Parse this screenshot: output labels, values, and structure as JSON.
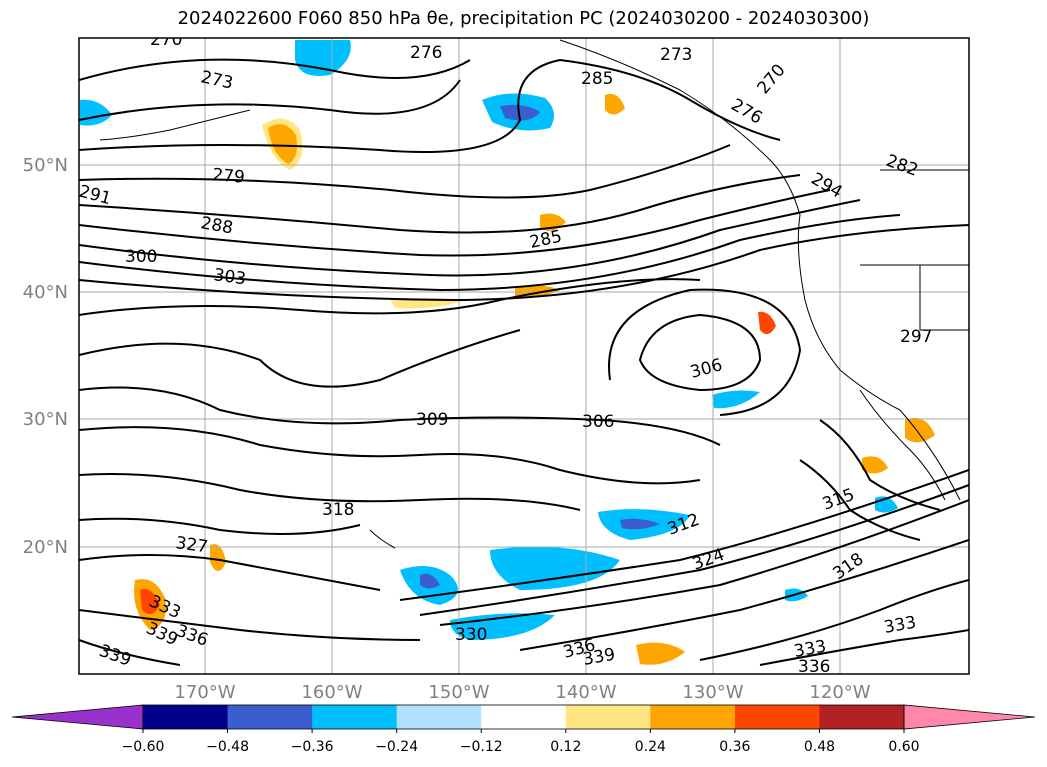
{
  "title": "2024022600 F060 850 hPa θe, precipitation PC (2024030200 - 2024030300)",
  "lat_labels": [
    "50°N",
    "40°N",
    "30°N",
    "20°N"
  ],
  "lon_labels": [
    "170°W",
    "160°W",
    "150°W",
    "140°W",
    "130°W",
    "120°W"
  ],
  "contour_labels": [
    "270",
    "273",
    "276",
    "279",
    "291",
    "288",
    "300",
    "303",
    "285",
    "285",
    "273",
    "276",
    "270",
    "282",
    "294",
    "297",
    "306",
    "309",
    "306",
    "318",
    "327",
    "312",
    "324",
    "315",
    "318",
    "333",
    "339",
    "336",
    "330",
    "336",
    "339",
    "333",
    "336",
    "333",
    "339"
  ],
  "colorbar": {
    "ticks": [
      "−0.60",
      "−0.48",
      "−0.36",
      "−0.24",
      "−0.12",
      "0.12",
      "0.24",
      "0.36",
      "0.48",
      "0.60"
    ],
    "colors": [
      "#9932cc",
      "#00008b",
      "#3a5fcd",
      "#00bfff",
      "#b0e2ff",
      "#ffffff",
      "#ffe680",
      "#ffa500",
      "#ff4500",
      "#b22222",
      "#ff88aa",
      "#ff88aa"
    ]
  }
}
